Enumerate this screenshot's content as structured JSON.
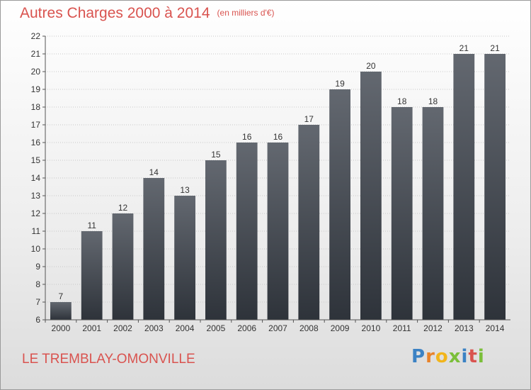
{
  "header": {
    "title": "Autres Charges 2000 à 2014",
    "subtitle": "(en milliers d'€)"
  },
  "footer": {
    "commune": "LE TREMBLAY-OMONVILLE",
    "logo_letters": [
      "P",
      "r",
      "o",
      "x",
      "i",
      "t",
      "i"
    ]
  },
  "chart_data": {
    "type": "bar",
    "title": "Autres Charges 2000 à 2014",
    "subtitle": "(en milliers d'€)",
    "categories": [
      "2000",
      "2001",
      "2002",
      "2003",
      "2004",
      "2005",
      "2006",
      "2007",
      "2008",
      "2009",
      "2010",
      "2011",
      "2012",
      "2013",
      "2014"
    ],
    "values": [
      7,
      11,
      12,
      14,
      13,
      15,
      16,
      16,
      17,
      19,
      20,
      18,
      18,
      21,
      21
    ],
    "ylim": [
      6,
      22
    ],
    "yticks": [
      6,
      7,
      8,
      9,
      10,
      11,
      12,
      13,
      14,
      15,
      16,
      17,
      18,
      19,
      20,
      21,
      22
    ],
    "grid": true,
    "legend": "none",
    "colors": {
      "bar_top": "#636870",
      "bar_bottom": "#2e333a",
      "title": "#d9534f",
      "text": "#333333",
      "grid": "#c8c8c8"
    }
  }
}
